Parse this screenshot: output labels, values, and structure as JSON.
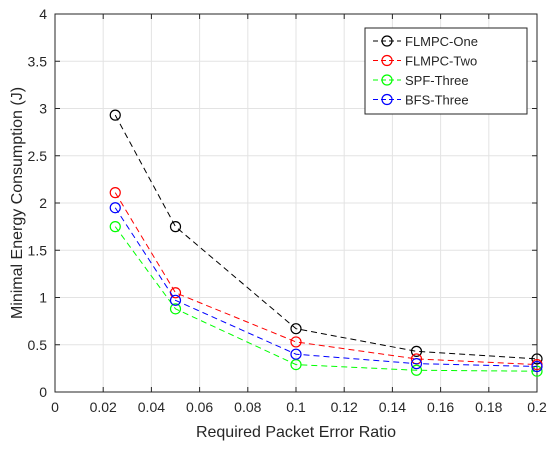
{
  "chart_data": {
    "type": "line",
    "xlabel": "Required Packet Error Ratio",
    "ylabel": "Minimal Energy Consumption (J)",
    "xlim": [
      0,
      0.2
    ],
    "ylim": [
      0,
      4
    ],
    "xticks": [
      0,
      0.02,
      0.04,
      0.06,
      0.08,
      0.1,
      0.12,
      0.14,
      0.16,
      0.18,
      0.2
    ],
    "xtick_labels": [
      "0",
      "0.02",
      "0.04",
      "0.06",
      "0.08",
      "0.1",
      "0.12",
      "0.14",
      "0.16",
      "0.18",
      "0.2"
    ],
    "yticks": [
      0,
      0.5,
      1,
      1.5,
      2,
      2.5,
      3,
      3.5,
      4
    ],
    "ytick_labels": [
      "0",
      "0.5",
      "1",
      "1.5",
      "2",
      "2.5",
      "3",
      "3.5",
      "4"
    ],
    "grid": true,
    "legend_position": "top-right",
    "x": [
      0.025,
      0.05,
      0.1,
      0.15,
      0.2
    ],
    "series": [
      {
        "name": "FLMPC-One",
        "color": "#000000",
        "line_style": "dashed",
        "marker": "circle",
        "values": [
          2.93,
          1.75,
          0.67,
          0.43,
          0.35
        ]
      },
      {
        "name": "FLMPC-Two",
        "color": "#ff0000",
        "line_style": "dashed",
        "marker": "circle",
        "values": [
          2.11,
          1.05,
          0.53,
          0.35,
          0.29
        ]
      },
      {
        "name": "SPF-Three",
        "color": "#00ff00",
        "line_style": "dashed",
        "marker": "circle",
        "values": [
          1.75,
          0.88,
          0.29,
          0.23,
          0.22
        ]
      },
      {
        "name": "BFS-Three",
        "color": "#0000ff",
        "line_style": "dashed",
        "marker": "circle",
        "values": [
          1.95,
          0.97,
          0.4,
          0.3,
          0.27
        ]
      }
    ]
  }
}
